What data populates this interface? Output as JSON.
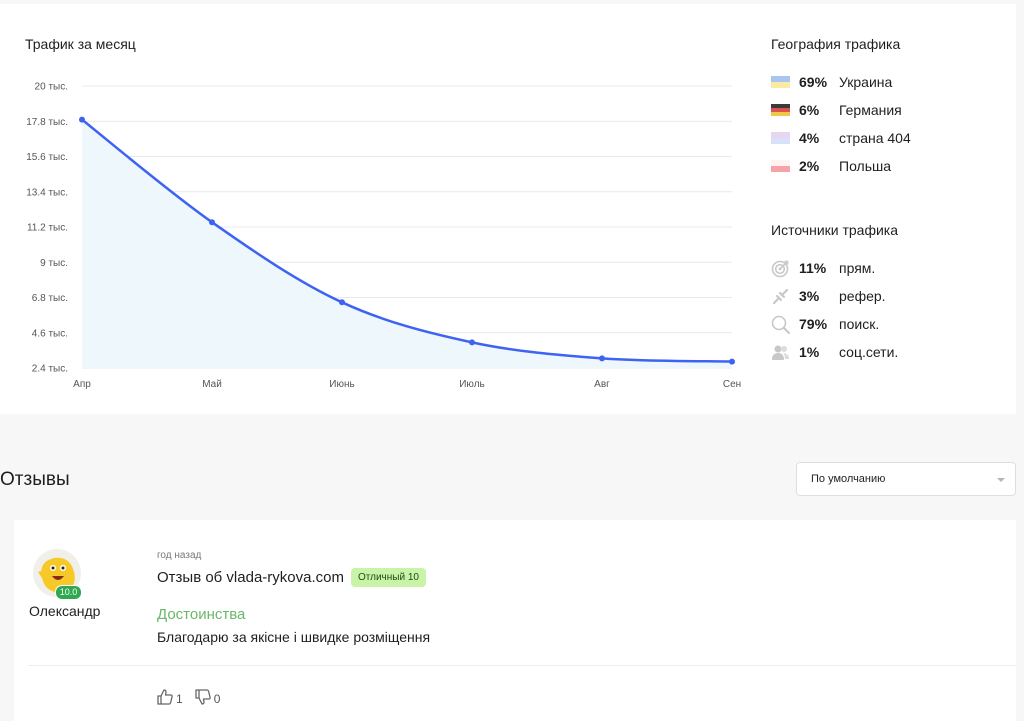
{
  "traffic": {
    "title": "Трафик за месяц",
    "chart_data": {
      "type": "area",
      "title": "Трафик за месяц",
      "categories": [
        "Апр",
        "Май",
        "Июнь",
        "Июль",
        "Авг",
        "Сен"
      ],
      "y_ticks": [
        "20 тыс.",
        "17.8 тыс.",
        "15.6 тыс.",
        "13.4 тыс.",
        "11.2 тыс.",
        "9 тыс.",
        "6.8 тыс.",
        "4.6 тыс.",
        "2.4 тыс."
      ],
      "y_tick_values": [
        20000,
        17800,
        15600,
        13400,
        11200,
        9000,
        6800,
        4600,
        2400
      ],
      "ylim": [
        2400,
        20000
      ],
      "series": [
        {
          "values": [
            17900,
            11500,
            6500,
            4000,
            3000,
            2800
          ]
        }
      ],
      "colors": {
        "line": "#3e63f2",
        "fill": "#eef7fc",
        "grid": "#e9e9e9"
      },
      "grid": true
    },
    "geo": {
      "title": "География трафика",
      "items": [
        {
          "pct": "69%",
          "name": "Украина",
          "flag": [
            "#a8c6ee",
            "#fbeaa6"
          ]
        },
        {
          "pct": "6%",
          "name": "Германия",
          "flag": [
            "#3a3a3a",
            "#d9534f",
            "#f1c74a"
          ]
        },
        {
          "pct": "4%",
          "name": "страна 404",
          "flag": [
            "#e6d6f2",
            "#d8e1f7"
          ]
        },
        {
          "pct": "2%",
          "name": "Польша",
          "flag": [
            "#fff2f2",
            "#f5a3a8"
          ]
        }
      ]
    },
    "sources": {
      "title": "Источники трафика",
      "items": [
        {
          "pct": "11%",
          "name": "прям.",
          "icon": "target-icon"
        },
        {
          "pct": "3%",
          "name": "рефер.",
          "icon": "link-icon"
        },
        {
          "pct": "79%",
          "name": "поиск.",
          "icon": "search-icon"
        },
        {
          "pct": "1%",
          "name": "соц.сети.",
          "icon": "users-icon"
        }
      ]
    }
  },
  "reviews": {
    "title": "Отзывы",
    "sort": {
      "selected": "По умолчанию"
    },
    "items": [
      {
        "author": "Олександр",
        "score": "10.0",
        "time": "год назад",
        "title": "Отзыв об vlada-rykova.com",
        "rating_badge": "Отличный 10",
        "advantages_label": "Достоинства",
        "text": "Благодарю за якісне і швидке розміщення",
        "likes": "1",
        "dislikes": "0"
      }
    ]
  }
}
